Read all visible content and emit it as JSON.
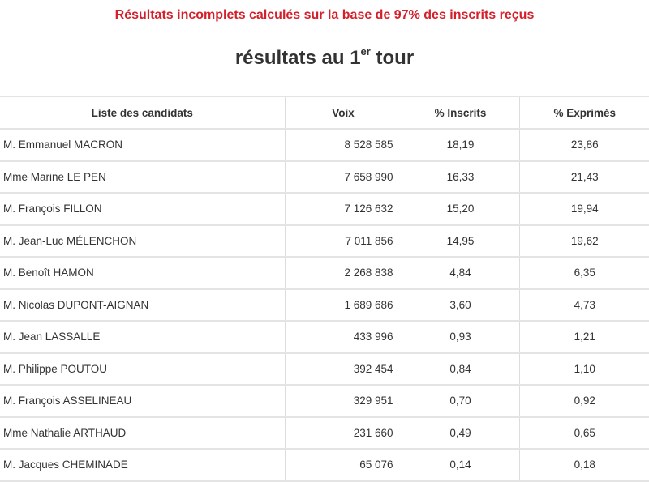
{
  "notice": "Résultats incomplets calculés sur la base de 97% des inscrits reçus",
  "title": {
    "main": "résultats au 1",
    "sup": "er",
    "tail": " tour"
  },
  "table": {
    "headers": [
      "Liste des candidats",
      "Voix",
      "% Inscrits",
      "% Exprimés"
    ],
    "rows": [
      [
        "M. Emmanuel MACRON",
        "8 528 585",
        "18,19",
        "23,86"
      ],
      [
        "Mme Marine LE PEN",
        "7 658 990",
        "16,33",
        "21,43"
      ],
      [
        "M. François FILLON",
        "7 126 632",
        "15,20",
        "19,94"
      ],
      [
        "M. Jean-Luc MÉLENCHON",
        "7 011 856",
        "14,95",
        "19,62"
      ],
      [
        "M. Benoît HAMON",
        "2 268 838",
        "4,84",
        "6,35"
      ],
      [
        "M. Nicolas DUPONT-AIGNAN",
        "1 689 686",
        "3,60",
        "4,73"
      ],
      [
        "M. Jean LASSALLE",
        "433 996",
        "0,93",
        "1,21"
      ],
      [
        "M. Philippe POUTOU",
        "392 454",
        "0,84",
        "1,10"
      ],
      [
        "M. François ASSELINEAU",
        "329 951",
        "0,70",
        "0,92"
      ],
      [
        "Mme Nathalie ARTHAUD",
        "231 660",
        "0,49",
        "0,65"
      ],
      [
        "M. Jacques CHEMINADE",
        "65 076",
        "0,14",
        "0,18"
      ]
    ]
  },
  "colors": {
    "notice": "#d3202b",
    "text": "#333333",
    "grid": "#e4e4e4"
  }
}
